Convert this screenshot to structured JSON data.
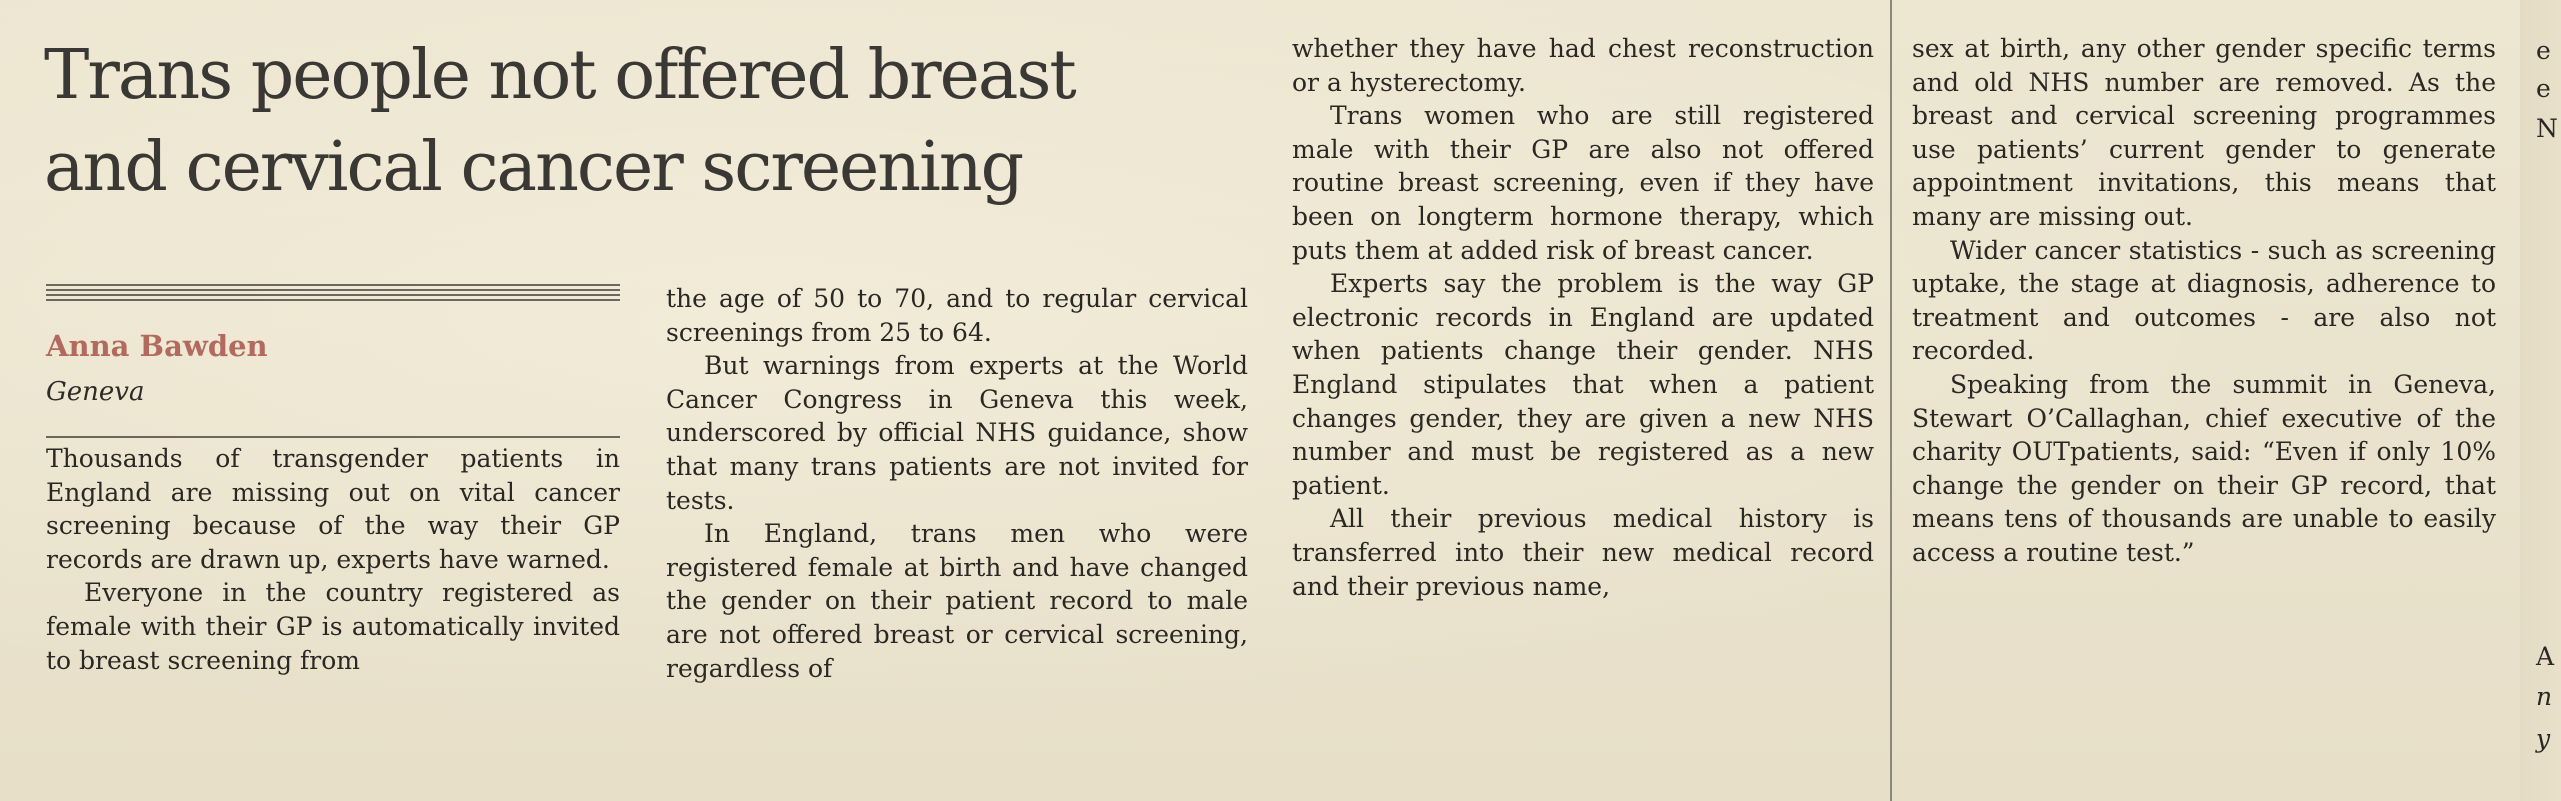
{
  "article": {
    "headline_line1": "Trans people not offered breast",
    "headline_line2": "and cervical cancer screening",
    "byline": "Anna Bawden",
    "dateline": "Geneva",
    "col1": [
      "Thousands of transgender patients in England are missing out on vital cancer screening because of the way their GP records are drawn up, experts have warned.",
      "Everyone in the country registered as female with their GP is automatically invited to breast screening from"
    ],
    "col2": [
      "the age of 50 to 70, and to regular cervical screenings from 25 to 64.",
      "But warnings from experts at the World Cancer Congress in Geneva this week, underscored by official NHS guidance, show that many trans patients are not invited for tests.",
      "In England, trans men who were registered female at birth and have changed the gender on their patient record to male are not offered breast or cervical screening, regardless of"
    ],
    "col3": [
      "whether they have had chest reconstruction or a hysterectomy.",
      "Trans women who are still registered male with their GP are also not offered routine breast screening, even if they have been on longterm hormone therapy, which puts them at added risk of breast cancer.",
      "Experts say the problem is the way GP electronic records in England are updated when patients change their gender. NHS England stipulates that when a patient changes gender, they are given a new NHS number and must be registered as a new patient.",
      "All their previous medical history is transferred into their new medical record and their previous name,"
    ],
    "col4": [
      "sex at birth, any other gender specific terms and old NHS number are removed. As the breast and cervical screening programmes use patients’ current gender to generate appointment invitations, this means that many are missing out.",
      "Wider cancer statistics - such as screening uptake, the stage at diagnosis, adherence to treatment and outcomes - are also not recorded.",
      "Speaking from the summit in Geneva, Stewart O’Callaghan, chief executive of the charity OUTpatients, said: “Even if only 10% change the gender on their GP record, that means tens of thousands are unable to easily access a routine test.”"
    ]
  },
  "edge_fragments": [
    "e",
    "e",
    "N",
    "A",
    "n",
    "y"
  ]
}
